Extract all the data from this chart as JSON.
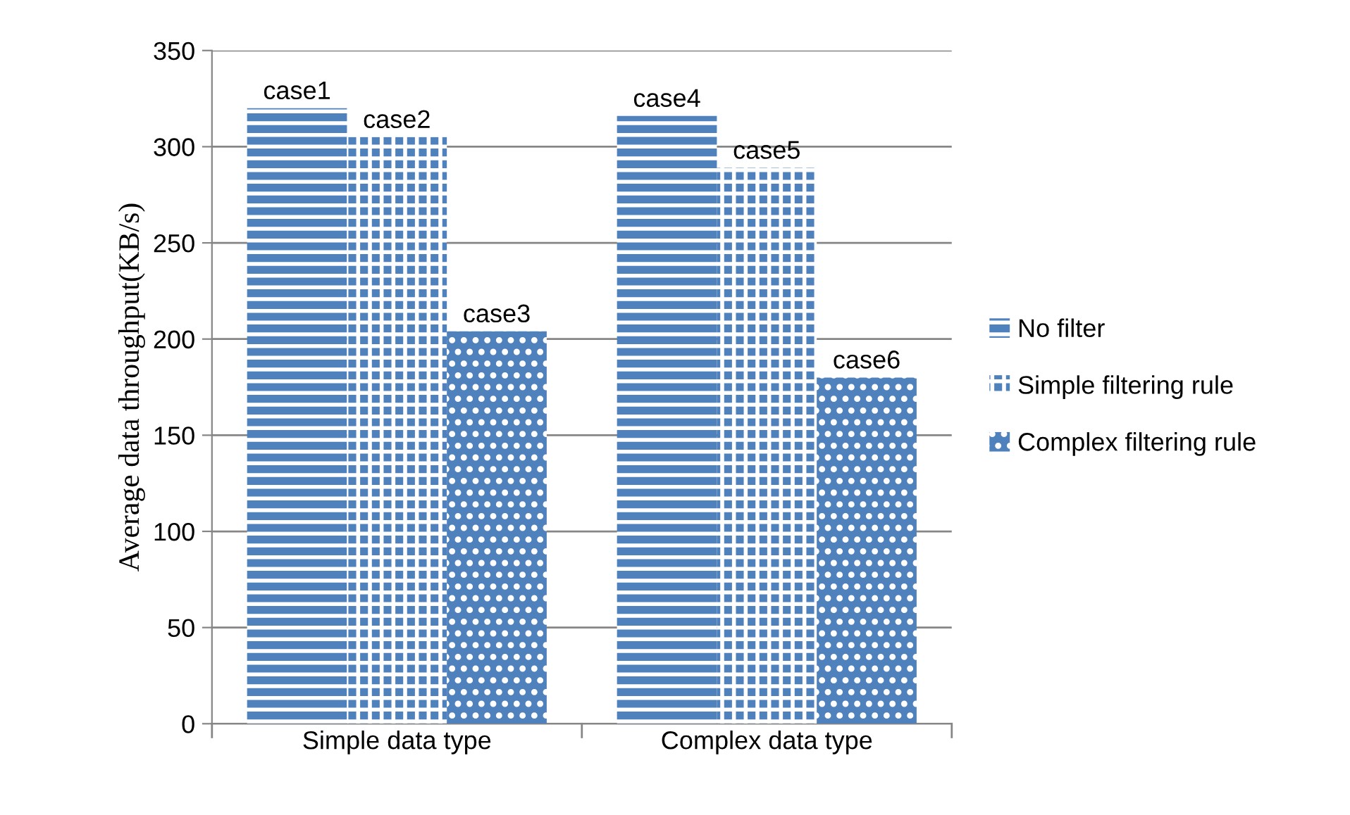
{
  "chart_data": {
    "type": "bar",
    "ylabel": "Average data throughput(KB/s)",
    "categories": [
      "Simple data type",
      "Complex data type"
    ],
    "series": [
      {
        "name": "No filter",
        "color": "#4f81bd",
        "values": [
          320,
          316
        ],
        "value_labels": [
          "case1",
          "case4"
        ]
      },
      {
        "name": "Simple filtering rule",
        "color": "#4f81bd",
        "values": [
          305,
          289
        ],
        "value_labels": [
          "case2",
          "case5"
        ]
      },
      {
        "name": "Complex filtering rule",
        "color": "#4f81bd",
        "values": [
          204,
          180
        ],
        "value_labels": [
          "case3",
          "case6"
        ]
      }
    ],
    "ylim": [
      0,
      350
    ],
    "yticks": [
      0,
      50,
      100,
      150,
      200,
      250,
      300,
      350
    ],
    "grid": "y",
    "legend": "right"
  }
}
